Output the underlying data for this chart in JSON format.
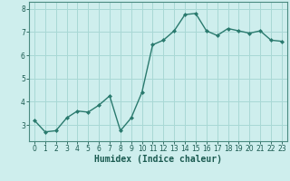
{
  "x": [
    0,
    1,
    2,
    3,
    4,
    5,
    6,
    7,
    8,
    9,
    10,
    11,
    12,
    13,
    14,
    15,
    16,
    17,
    18,
    19,
    20,
    21,
    22,
    23
  ],
  "y": [
    3.2,
    2.7,
    2.75,
    3.3,
    3.6,
    3.55,
    3.85,
    4.25,
    2.75,
    3.3,
    4.4,
    6.45,
    6.65,
    7.05,
    7.75,
    7.8,
    7.05,
    6.85,
    7.15,
    7.05,
    6.95,
    7.05,
    6.65,
    6.6
  ],
  "line_color": "#2a7a6e",
  "marker": "D",
  "marker_size": 2.0,
  "bg_color": "#ceeeed",
  "grid_color": "#a8d8d5",
  "xlabel": "Humidex (Indice chaleur)",
  "xlabel_fontsize": 7.0,
  "ylabel_ticks": [
    3,
    4,
    5,
    6,
    7,
    8
  ],
  "xlim": [
    -0.5,
    23.5
  ],
  "ylim": [
    2.3,
    8.3
  ],
  "xtick_labels": [
    "0",
    "1",
    "2",
    "3",
    "4",
    "5",
    "6",
    "7",
    "8",
    "9",
    "10",
    "11",
    "12",
    "13",
    "14",
    "15",
    "16",
    "17",
    "18",
    "19",
    "20",
    "21",
    "22",
    "23"
  ],
  "tick_fontsize": 5.5,
  "line_width": 1.0
}
